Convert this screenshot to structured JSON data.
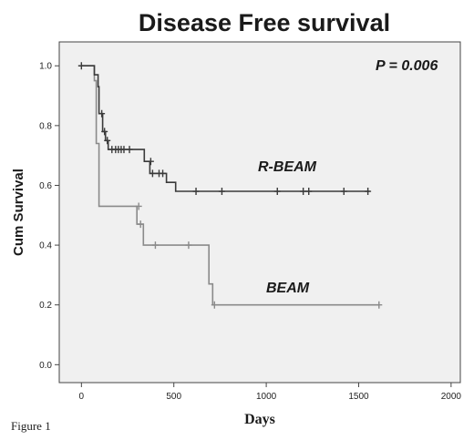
{
  "figure_label": "Figure 1",
  "chart_data": {
    "type": "line",
    "step": true,
    "title": "Disease Free survival",
    "xlabel": "Days",
    "ylabel": "Cum Survival",
    "xlim": [
      -120,
      2050
    ],
    "ylim": [
      -0.06,
      1.08
    ],
    "xticks": [
      0,
      500,
      1000,
      1500,
      2000
    ],
    "yticks": [
      0.0,
      0.2,
      0.4,
      0.6,
      0.8,
      1.0
    ],
    "ytick_labels": [
      "0.0",
      "0.2",
      "0.4",
      "0.6",
      "0.8",
      "1.0"
    ],
    "grid": false,
    "annotation": "P = 0.006",
    "series": [
      {
        "name": "R-BEAM",
        "color": "#3a3a3a",
        "points": [
          [
            0,
            1.0
          ],
          [
            70,
            1.0
          ],
          [
            70,
            0.97
          ],
          [
            90,
            0.97
          ],
          [
            90,
            0.93
          ],
          [
            95,
            0.93
          ],
          [
            95,
            0.84
          ],
          [
            115,
            0.84
          ],
          [
            115,
            0.78
          ],
          [
            130,
            0.78
          ],
          [
            130,
            0.75
          ],
          [
            145,
            0.75
          ],
          [
            145,
            0.72
          ],
          [
            290,
            0.72
          ],
          [
            290,
            0.72
          ],
          [
            340,
            0.72
          ],
          [
            340,
            0.68
          ],
          [
            370,
            0.68
          ],
          [
            370,
            0.64
          ],
          [
            460,
            0.64
          ],
          [
            460,
            0.61
          ],
          [
            510,
            0.61
          ],
          [
            510,
            0.58
          ],
          [
            1560,
            0.58
          ]
        ],
        "censored": [
          [
            0,
            1.0
          ],
          [
            110,
            0.84
          ],
          [
            125,
            0.78
          ],
          [
            140,
            0.75
          ],
          [
            165,
            0.72
          ],
          [
            185,
            0.72
          ],
          [
            200,
            0.72
          ],
          [
            215,
            0.72
          ],
          [
            230,
            0.72
          ],
          [
            260,
            0.72
          ],
          [
            375,
            0.68
          ],
          [
            385,
            0.64
          ],
          [
            420,
            0.64
          ],
          [
            440,
            0.64
          ],
          [
            620,
            0.58
          ],
          [
            760,
            0.58
          ],
          [
            1060,
            0.58
          ],
          [
            1200,
            0.58
          ],
          [
            1230,
            0.58
          ],
          [
            1420,
            0.58
          ],
          [
            1550,
            0.58
          ]
        ]
      },
      {
        "name": "BEAM",
        "color": "#8a8a8a",
        "points": [
          [
            0,
            1.0
          ],
          [
            70,
            1.0
          ],
          [
            70,
            0.95
          ],
          [
            80,
            0.95
          ],
          [
            80,
            0.74
          ],
          [
            95,
            0.74
          ],
          [
            95,
            0.53
          ],
          [
            300,
            0.53
          ],
          [
            300,
            0.47
          ],
          [
            335,
            0.47
          ],
          [
            335,
            0.4
          ],
          [
            690,
            0.4
          ],
          [
            690,
            0.27
          ],
          [
            710,
            0.27
          ],
          [
            710,
            0.2
          ],
          [
            1610,
            0.2
          ]
        ],
        "censored": [
          [
            310,
            0.53
          ],
          [
            320,
            0.47
          ],
          [
            400,
            0.4
          ],
          [
            580,
            0.4
          ],
          [
            720,
            0.2
          ],
          [
            1610,
            0.2
          ]
        ]
      }
    ]
  }
}
